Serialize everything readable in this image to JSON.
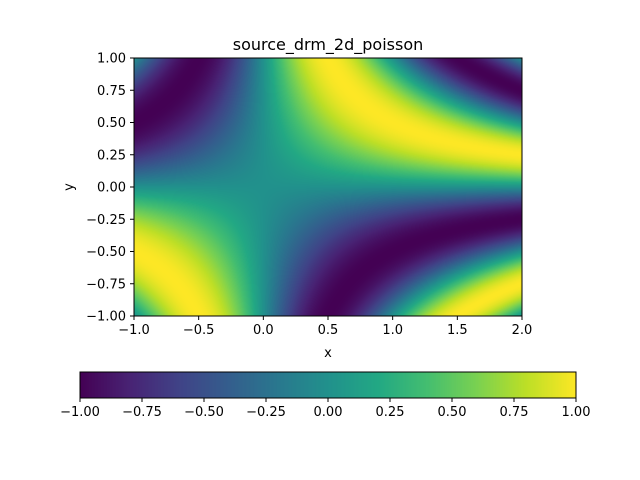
{
  "chart_data": {
    "type": "heatmap",
    "title": "source_drm_2d_poisson",
    "xlabel": "x",
    "ylabel": "y",
    "xlim": [
      -1.0,
      2.0
    ],
    "ylim": [
      -1.0,
      1.0
    ],
    "x_ticks": [
      "−1.0",
      "−0.5",
      "0.0",
      "0.5",
      "1.0",
      "1.5",
      "2.0"
    ],
    "x_tick_values": [
      -1.0,
      -0.5,
      0.0,
      0.5,
      1.0,
      1.5,
      2.0
    ],
    "y_ticks": [
      "−1.00",
      "−0.75",
      "−0.50",
      "−0.25",
      "0.00",
      "0.25",
      "0.50",
      "0.75",
      "1.00"
    ],
    "y_tick_values": [
      -1.0,
      -0.75,
      -0.5,
      -0.25,
      0.0,
      0.25,
      0.5,
      0.75,
      1.0
    ],
    "function": "sin(pi*x*y)",
    "colormap": "viridis",
    "colorbar": {
      "orientation": "horizontal",
      "placement": "bottom",
      "range": [
        -1.0,
        1.0
      ],
      "ticks": [
        "−1.00",
        "−0.75",
        "−0.50",
        "−0.25",
        "0.00",
        "0.25",
        "0.50",
        "0.75",
        "1.00"
      ],
      "tick_values": [
        -1.0,
        -0.75,
        -0.5,
        -0.25,
        0.0,
        0.25,
        0.5,
        0.75,
        1.0
      ]
    },
    "grid": false
  }
}
